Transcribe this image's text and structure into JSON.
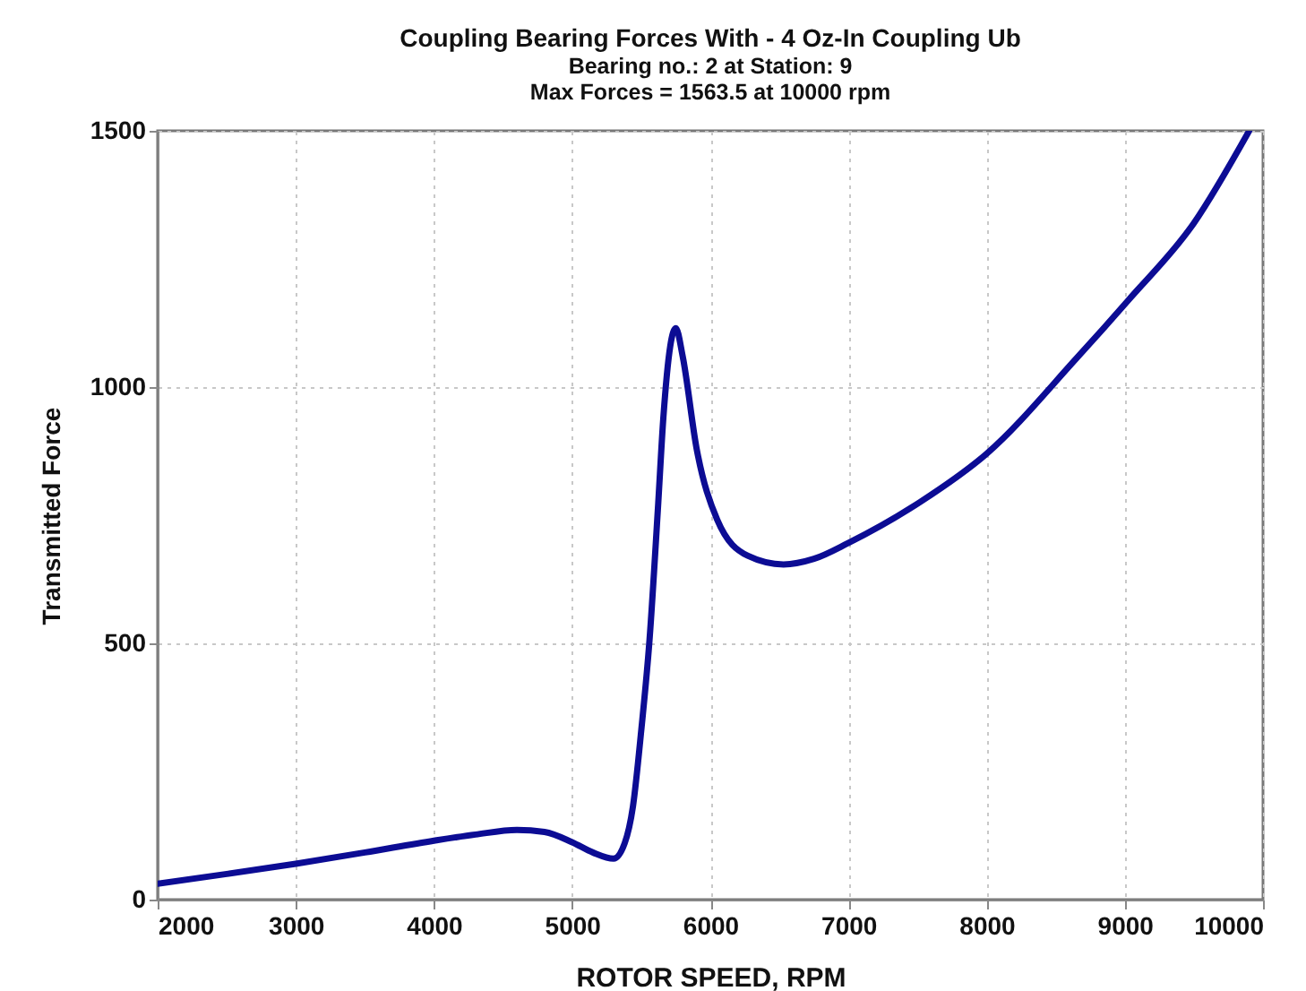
{
  "chart_data": {
    "type": "line",
    "title": "Coupling Bearing Forces With - 4 Oz-In Coupling Ub",
    "subtitle": "Bearing no.: 2  at Station:  9\nMax Forces = 1563.5 at 10000 rpm",
    "xlabel": "ROTOR SPEED, RPM",
    "ylabel": "Transmitted Force",
    "x": [
      2000,
      2500,
      3000,
      3500,
      4000,
      4300,
      4600,
      4800,
      5000,
      5150,
      5300,
      5380,
      5440,
      5500,
      5560,
      5620,
      5660,
      5710,
      5750,
      5800,
      5900,
      6050,
      6270,
      6530,
      6750,
      7000,
      7520,
      8000,
      8650,
      9030,
      9500,
      9900
    ],
    "series": [
      {
        "color": "#0c0c94",
        "values": [
          31,
          50,
          70,
          92,
          115,
          127,
          136,
          132,
          112,
          92,
          80,
          110,
          182,
          330,
          507,
          760,
          940,
          1080,
          1115,
          1060,
          881,
          741,
          671,
          654,
          665,
          696,
          776,
          870,
          1056,
          1171,
          1320,
          1500
        ]
      }
    ],
    "xlim": [
      2000,
      10000
    ],
    "xticks": [
      2000,
      3000,
      4000,
      5000,
      6000,
      7000,
      8000,
      9000,
      10000
    ],
    "ylim": [
      0,
      1500
    ],
    "yticks": [
      0,
      500,
      1000,
      1500
    ],
    "grid": true,
    "line_style": "solid",
    "marker": "none"
  }
}
